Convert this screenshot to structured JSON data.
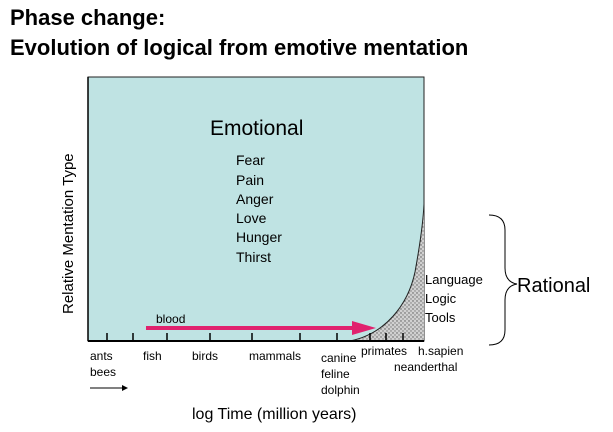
{
  "title_line1": "Phase change:",
  "title_line2": "Evolution of logical from emotive mentation",
  "y_axis_label": "Relative Mentation Type",
  "x_axis_label": "log Time (million years)",
  "emotional_heading": "Emotional",
  "emotions": [
    "Fear",
    "Pain",
    "Anger",
    "Love",
    "Hunger",
    "Thirst"
  ],
  "rational_items": [
    "Language",
    "Logic",
    "Tools"
  ],
  "rational_label": "Rational",
  "blood_label": "blood",
  "x_groups": [
    {
      "lines": [
        "ants",
        "bees"
      ]
    },
    {
      "lines": [
        "fish"
      ]
    },
    {
      "lines": [
        "birds"
      ]
    },
    {
      "lines": [
        "mammals"
      ]
    },
    {
      "lines": [
        "canine",
        "feline",
        "dolphin"
      ]
    },
    {
      "lines": [
        "primates"
      ]
    },
    {
      "lines": [
        "h.sapien",
        "neanderthal"
      ]
    }
  ],
  "colors": {
    "emotional_fill": "#bfe3e3",
    "rational_fill": "#d0d0d0",
    "blood_arrow": "#e0226e"
  }
}
